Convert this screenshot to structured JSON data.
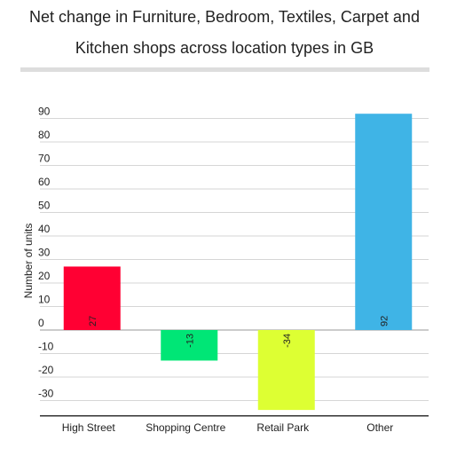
{
  "title_line1": "Net change in Furniture, Bedroom, Textiles, Carpet and",
  "title_line2": "Kitchen shops across location types in GB",
  "chart_data": {
    "type": "bar",
    "title": "Net change in Furniture, Bedroom, Textiles, Carpet and Kitchen shops across location types in GB",
    "xlabel": "",
    "ylabel": "Number of units",
    "categories": [
      "High Street",
      "Shopping Centre",
      "Retail Park",
      "Other"
    ],
    "values": [
      27,
      -13,
      -34,
      92
    ],
    "colors": [
      "#ff0033",
      "#00e676",
      "#ddff33",
      "#3fb4e6"
    ],
    "data_labels": [
      "27",
      "-13",
      "-34",
      "92"
    ],
    "yticks": [
      -30,
      -20,
      -10,
      0,
      10,
      20,
      30,
      40,
      50,
      60,
      70,
      80,
      90
    ],
    "ylim": [
      -35,
      95
    ],
    "grid": true,
    "legend": "none"
  }
}
